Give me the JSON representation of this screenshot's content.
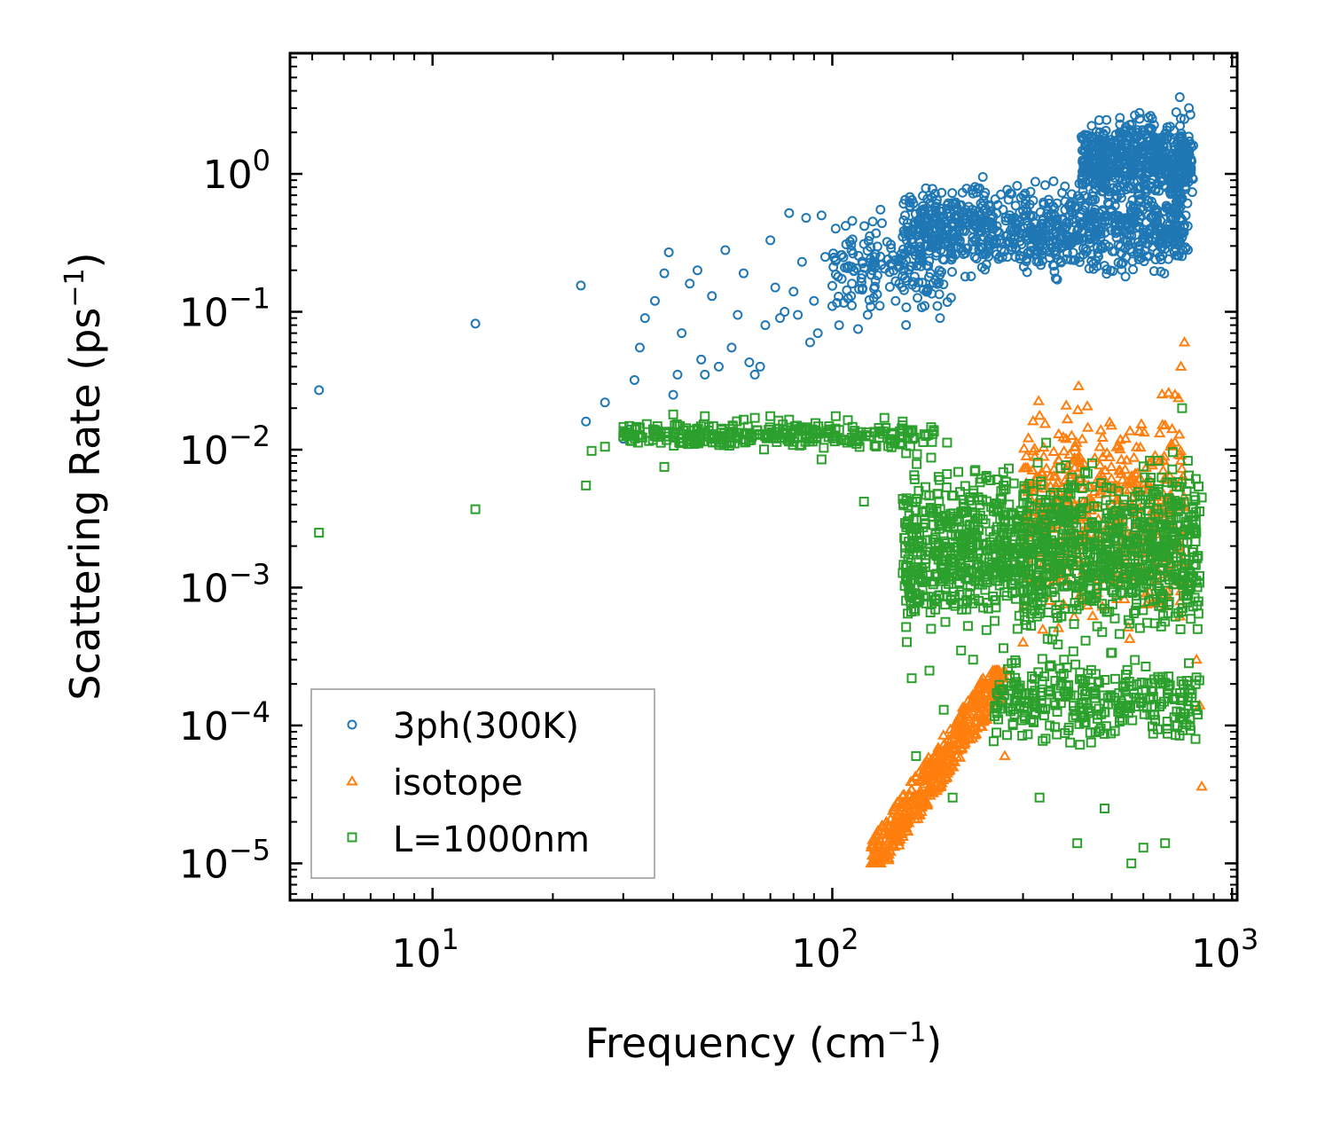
{
  "chart_data": {
    "type": "scatter",
    "title": "",
    "xlabel": "Frequency (cm",
    "xlabel_sup": "−1",
    "xlabel_end": ")",
    "ylabel": "Scattering Rate (ps",
    "ylabel_sup": "−1",
    "ylabel_end": ")",
    "xscale": "log",
    "yscale": "log",
    "xlim": [
      4.4,
      1030
    ],
    "ylim": [
      5.4e-06,
      7.5
    ],
    "legend_position": "lower-left",
    "x_ticks": [
      {
        "value": 10,
        "base": "10",
        "exp": "1"
      },
      {
        "value": 100,
        "base": "10",
        "exp": "2"
      },
      {
        "value": 1000,
        "base": "10",
        "exp": "3"
      }
    ],
    "y_ticks": [
      {
        "value": 1e-05,
        "base": "10",
        "exp": "−5"
      },
      {
        "value": 0.0001,
        "base": "10",
        "exp": "−4"
      },
      {
        "value": 0.001,
        "base": "10",
        "exp": "−3"
      },
      {
        "value": 0.01,
        "base": "10",
        "exp": "−2"
      },
      {
        "value": 0.1,
        "base": "10",
        "exp": "−1"
      },
      {
        "value": 1,
        "base": "10",
        "exp": "0"
      }
    ],
    "series": [
      {
        "name": "3ph(300K)",
        "marker": "circle",
        "color": "#1f77b4",
        "points": [
          [
            5.2,
            0.027
          ],
          [
            12.8,
            0.082
          ],
          [
            23.5,
            0.155
          ],
          [
            24.2,
            0.016
          ],
          [
            27,
            0.022
          ],
          [
            30,
            0.012
          ],
          [
            31,
            0.014
          ],
          [
            32,
            0.032
          ],
          [
            33,
            0.055
          ],
          [
            34,
            0.09
          ],
          [
            36,
            0.12
          ],
          [
            38,
            0.19
          ],
          [
            39,
            0.27
          ],
          [
            40,
            0.025
          ],
          [
            41,
            0.035
          ],
          [
            42,
            0.07
          ],
          [
            44,
            0.16
          ],
          [
            46,
            0.2
          ],
          [
            47,
            0.045
          ],
          [
            48,
            0.035
          ],
          [
            50,
            0.13
          ],
          [
            52,
            0.04
          ],
          [
            54,
            0.28
          ],
          [
            56,
            0.055
          ],
          [
            58,
            0.095
          ],
          [
            60,
            0.19
          ],
          [
            62,
            0.043
          ],
          [
            64,
            0.035
          ],
          [
            66,
            0.04
          ],
          [
            68,
            0.08
          ],
          [
            70,
            0.33
          ],
          [
            72,
            0.15
          ],
          [
            74,
            0.09
          ],
          [
            76,
            0.1
          ],
          [
            78,
            0.52
          ],
          [
            80,
            0.14
          ],
          [
            82,
            0.095
          ],
          [
            84,
            0.23
          ],
          [
            86,
            0.48
          ],
          [
            88,
            0.06
          ],
          [
            90,
            0.12
          ],
          [
            92,
            0.07
          ],
          [
            94,
            0.5
          ],
          [
            96,
            0.25
          ],
          [
            100,
            0.11
          ],
          [
            104,
            0.08
          ],
          [
            108,
            0.42
          ],
          [
            112,
            0.16
          ],
          [
            116,
            0.075
          ],
          [
            120,
            0.31
          ],
          [
            126,
            0.2
          ],
          [
            132,
            0.55
          ],
          [
            138,
            0.24
          ],
          [
            144,
            0.12
          ],
          [
            150,
            0.35
          ],
          [
            156,
            0.62
          ],
          [
            162,
            0.15
          ],
          [
            170,
            0.45
          ],
          [
            178,
            0.78
          ],
          [
            186,
            0.09
          ],
          [
            195,
            0.3
          ],
          [
            205,
            0.55
          ],
          [
            215,
            0.18
          ],
          [
            225,
            0.72
          ],
          [
            238,
            0.95
          ],
          [
            250,
            0.42
          ],
          [
            262,
            0.25
          ],
          [
            276,
            0.65
          ],
          [
            290,
            0.82
          ],
          [
            305,
            0.5
          ],
          [
            320,
            0.28
          ],
          [
            338,
            0.6
          ],
          [
            355,
            0.45
          ],
          [
            375,
            0.3
          ],
          [
            395,
            0.55
          ],
          [
            415,
            0.85
          ],
          [
            440,
            0.38
          ],
          [
            465,
            0.52
          ],
          [
            490,
            0.95
          ],
          [
            520,
            1.2
          ],
          [
            550,
            0.8
          ],
          [
            580,
            1.5
          ],
          [
            610,
            1.1
          ],
          [
            640,
            1.8
          ],
          [
            670,
            1.4
          ],
          [
            700,
            2.2
          ],
          [
            725,
            2.8
          ],
          [
            740,
            3.6
          ],
          [
            760,
            2.5
          ],
          [
            780,
            3.0
          ]
        ],
        "cloud": [
          {
            "x": [
              150,
              780
            ],
            "y": [
              0.15,
              1.0
            ],
            "count": 900
          },
          {
            "x": [
              420,
              800
            ],
            "y": [
              0.5,
              3.2
            ],
            "count": 600
          },
          {
            "x": [
              100,
              200
            ],
            "y": [
              0.07,
              0.6
            ],
            "count": 150
          }
        ]
      },
      {
        "name": "isotope",
        "marker": "triangle",
        "color": "#ff7f0e",
        "points": [
          [
            125,
            1e-05
          ],
          [
            135,
            1.1e-05
          ],
          [
            145,
            1.6e-05
          ],
          [
            155,
            2.3e-05
          ],
          [
            165,
            3.2e-05
          ],
          [
            180,
            4.8e-05
          ],
          [
            195,
            7e-05
          ],
          [
            215,
            0.00012
          ],
          [
            235,
            0.00019
          ],
          [
            255,
            0.00024
          ],
          [
            270,
            6e-05
          ],
          [
            300,
            0.0004
          ],
          [
            350,
            0.0008
          ],
          [
            420,
            0.002
          ],
          [
            500,
            0.004
          ],
          [
            560,
            0.006
          ],
          [
            620,
            0.008
          ],
          [
            680,
            0.015
          ],
          [
            720,
            0.025
          ],
          [
            745,
            0.04
          ],
          [
            760,
            0.06
          ],
          [
            790,
            0.001
          ],
          [
            815,
            0.0003
          ],
          [
            830,
            0.00014
          ],
          [
            840,
            3.6e-05
          ]
        ],
        "cloud": [
          {
            "x": [
              125,
              270
            ],
            "y": [
              1e-05,
              0.00025
            ],
            "count": 500,
            "trend": true
          },
          {
            "x": [
              300,
              760
            ],
            "y": [
              0.0003,
              0.04
            ],
            "count": 500
          }
        ]
      },
      {
        "name": "L=1000nm",
        "marker": "square",
        "color": "#2ca02c",
        "points": [
          [
            5.2,
            0.0025
          ],
          [
            12.8,
            0.0037
          ],
          [
            24.2,
            0.0055
          ],
          [
            25,
            0.0098
          ],
          [
            27,
            0.0105
          ],
          [
            30,
            0.0125
          ],
          [
            33,
            0.0128
          ],
          [
            36,
            0.0125
          ],
          [
            38,
            0.0075
          ],
          [
            40,
            0.018
          ],
          [
            44,
            0.0115
          ],
          [
            48,
            0.0175
          ],
          [
            52,
            0.0112
          ],
          [
            56,
            0.0135
          ],
          [
            60,
            0.0165
          ],
          [
            64,
            0.017
          ],
          [
            70,
            0.0175
          ],
          [
            78,
            0.0165
          ],
          [
            86,
            0.0125
          ],
          [
            94,
            0.0085
          ],
          [
            102,
            0.0175
          ],
          [
            112,
            0.0115
          ],
          [
            120,
            0.0042
          ],
          [
            135,
            0.017
          ],
          [
            150,
            0.016
          ],
          [
            165,
            0.0025
          ],
          [
            180,
            0.0018
          ],
          [
            195,
            0.0012
          ],
          [
            210,
            0.00035
          ],
          [
            225,
            0.0003
          ],
          [
            240,
            0.0012
          ],
          [
            260,
            0.0015
          ],
          [
            285,
            0.0002
          ],
          [
            305,
            0.0008
          ],
          [
            330,
            3e-05
          ],
          [
            350,
            0.0001
          ],
          [
            380,
            0.0003
          ],
          [
            410,
            1.4e-05
          ],
          [
            450,
            0.002
          ],
          [
            480,
            2.5e-05
          ],
          [
            520,
            0.005
          ],
          [
            560,
            1e-05
          ],
          [
            600,
            1.3e-05
          ],
          [
            640,
            0.005
          ],
          [
            680,
            1.4e-05
          ],
          [
            720,
            0.0001
          ],
          [
            750,
            0.02
          ],
          [
            780,
            0.0065
          ],
          [
            800,
            0.0012
          ],
          [
            820,
            0.0005
          ],
          [
            840,
            0.0045
          ],
          [
            160,
            0.0007
          ],
          [
            158,
            0.00022
          ],
          [
            162,
            6e-05
          ],
          [
            175,
            0.00025
          ],
          [
            190,
            0.00013
          ],
          [
            200,
            3e-05
          ]
        ],
        "cloud": [
          {
            "x": [
              30,
              180
            ],
            "y": [
              0.0095,
              0.017
            ],
            "count": 300
          },
          {
            "x": [
              150,
              830
            ],
            "y": [
              0.0003,
              0.012
            ],
            "count": 1300
          },
          {
            "x": [
              250,
              830
            ],
            "y": [
              6e-05,
              0.0004
            ],
            "count": 300
          }
        ]
      }
    ]
  }
}
